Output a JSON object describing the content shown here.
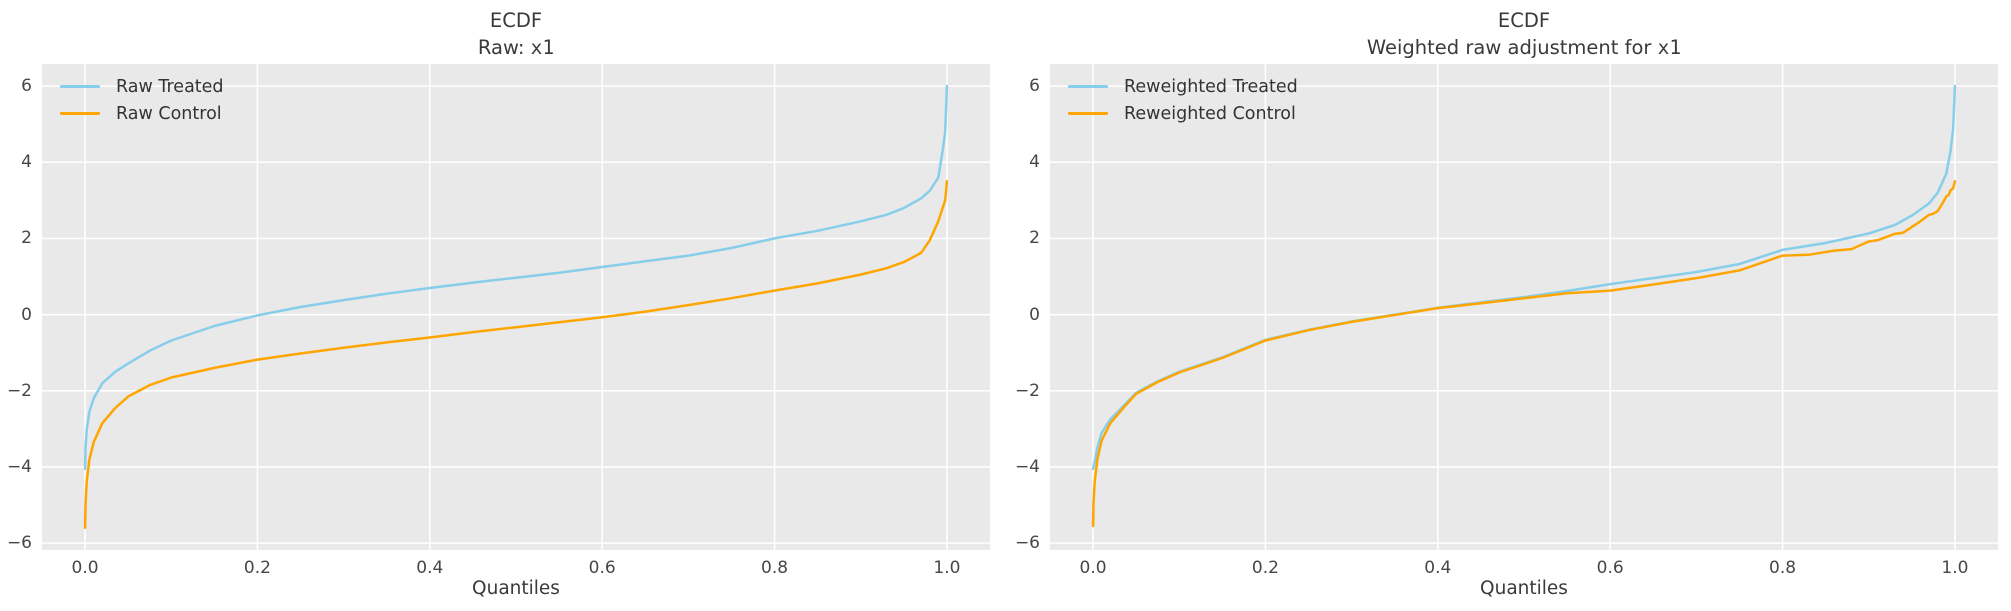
{
  "figure": {
    "background": "#ffffff",
    "axes_background": "#e9e9e9",
    "grid_color": "#ffffff",
    "title_color": "#3a3a3a",
    "tick_color": "#474747",
    "treated_color": "#87CEEB",
    "control_color": "#FFA500"
  },
  "chart_data": [
    {
      "type": "line",
      "name": "ecdf-raw",
      "title_line1": "ECDF",
      "title_line2_prefix": "Raw: ",
      "title_variable": "x1",
      "xlabel": "Quantiles",
      "grid": true,
      "legend_position": "upper-left",
      "xlim": [
        -0.05,
        1.05
      ],
      "ylim": [
        -6.18,
        6.58
      ],
      "xticks": [
        0.0,
        0.2,
        0.4,
        0.6,
        0.8,
        1.0
      ],
      "xtick_labels": [
        "0.0",
        "0.2",
        "0.4",
        "0.6",
        "0.8",
        "1.0"
      ],
      "yticks": [
        6,
        4,
        2,
        0,
        -2,
        -4,
        -6
      ],
      "ytick_labels": [
        "6",
        "4",
        "2",
        "0",
        "−2",
        "−4",
        "−6"
      ],
      "x": [
        0,
        0.0005,
        0.002,
        0.005,
        0.01,
        0.02,
        0.035,
        0.05,
        0.075,
        0.1,
        0.15,
        0.2,
        0.25,
        0.3,
        0.35,
        0.4,
        0.45,
        0.5,
        0.55,
        0.6,
        0.65,
        0.7,
        0.75,
        0.8,
        0.85,
        0.9,
        0.93,
        0.95,
        0.97,
        0.98,
        0.99,
        0.995,
        0.998,
        1.0
      ],
      "series": [
        {
          "name": "Raw Treated",
          "color": "#87CEEB",
          "values": [
            -4.05,
            -3.5,
            -3.0,
            -2.55,
            -2.2,
            -1.8,
            -1.5,
            -1.28,
            -0.95,
            -0.68,
            -0.3,
            -0.02,
            0.2,
            0.38,
            0.55,
            0.7,
            0.84,
            0.97,
            1.1,
            1.25,
            1.4,
            1.55,
            1.75,
            2.0,
            2.2,
            2.45,
            2.62,
            2.8,
            3.05,
            3.25,
            3.6,
            4.3,
            4.8,
            6.0
          ]
        },
        {
          "name": "Raw Control",
          "color": "#FFA500",
          "values": [
            -5.6,
            -5.0,
            -4.35,
            -3.8,
            -3.35,
            -2.85,
            -2.45,
            -2.15,
            -1.85,
            -1.65,
            -1.4,
            -1.18,
            -1.02,
            -0.87,
            -0.73,
            -0.6,
            -0.46,
            -0.33,
            -0.2,
            -0.07,
            0.08,
            0.25,
            0.43,
            0.63,
            0.82,
            1.05,
            1.22,
            1.38,
            1.62,
            1.95,
            2.45,
            2.8,
            3.0,
            3.5
          ]
        }
      ]
    },
    {
      "type": "line",
      "name": "ecdf-weighted",
      "title_line1": "ECDF",
      "title_line2_prefix": "Weighted raw adjustment for ",
      "title_variable": "x1",
      "xlabel": "Quantiles",
      "grid": true,
      "legend_position": "upper-left",
      "xlim": [
        -0.05,
        1.05
      ],
      "ylim": [
        -6.18,
        6.58
      ],
      "xticks": [
        0.0,
        0.2,
        0.4,
        0.6,
        0.8,
        1.0
      ],
      "xtick_labels": [
        "0.0",
        "0.2",
        "0.4",
        "0.6",
        "0.8",
        "1.0"
      ],
      "yticks": [
        6,
        4,
        2,
        0,
        -2,
        -4,
        -6
      ],
      "ytick_labels": [
        "6",
        "4",
        "2",
        "0",
        "−2",
        "−4",
        "−6"
      ],
      "x": [
        0,
        0.0005,
        0.002,
        0.005,
        0.01,
        0.02,
        0.035,
        0.05,
        0.075,
        0.1,
        0.15,
        0.2,
        0.25,
        0.3,
        0.35,
        0.4,
        0.45,
        0.5,
        0.55,
        0.6,
        0.65,
        0.7,
        0.75,
        0.8,
        0.85,
        0.9,
        0.93,
        0.95,
        0.97,
        0.98,
        0.99,
        0.995,
        0.998,
        1.0
      ],
      "series": [
        {
          "name": "Reweighted Treated",
          "color": "#87CEEB",
          "values": [
            -4.05,
            -4.0,
            -3.85,
            -3.5,
            -3.1,
            -2.75,
            -2.4,
            -2.05,
            -1.75,
            -1.5,
            -1.12,
            -0.66,
            -0.4,
            -0.18,
            0.0,
            0.18,
            0.32,
            0.46,
            0.62,
            0.8,
            0.96,
            1.12,
            1.33,
            1.7,
            1.88,
            2.13,
            2.35,
            2.6,
            2.92,
            3.2,
            3.7,
            4.3,
            4.9,
            6.0
          ]
        },
        {
          "name": "Reweighted Control",
          "color": "#FFA500",
          "x": [
            0,
            0.0005,
            0.002,
            0.005,
            0.01,
            0.02,
            0.035,
            0.05,
            0.075,
            0.1,
            0.15,
            0.2,
            0.25,
            0.3,
            0.35,
            0.4,
            0.45,
            0.5,
            0.55,
            0.6,
            0.65,
            0.7,
            0.75,
            0.8,
            0.83,
            0.86,
            0.88,
            0.9,
            0.91,
            0.93,
            0.94,
            0.96,
            0.97,
            0.975,
            0.98,
            0.985,
            0.99,
            0.993,
            0.995,
            0.998,
            1.0
          ],
          "values": [
            -5.55,
            -4.95,
            -4.35,
            -3.8,
            -3.3,
            -2.85,
            -2.45,
            -2.08,
            -1.77,
            -1.52,
            -1.14,
            -0.68,
            -0.41,
            -0.19,
            -0.01,
            0.17,
            0.3,
            0.43,
            0.56,
            0.63,
            0.79,
            0.96,
            1.16,
            1.55,
            1.57,
            1.68,
            1.72,
            1.92,
            1.95,
            2.12,
            2.15,
            2.45,
            2.62,
            2.65,
            2.72,
            2.9,
            3.1,
            3.15,
            3.27,
            3.32,
            3.5
          ]
        }
      ]
    }
  ]
}
